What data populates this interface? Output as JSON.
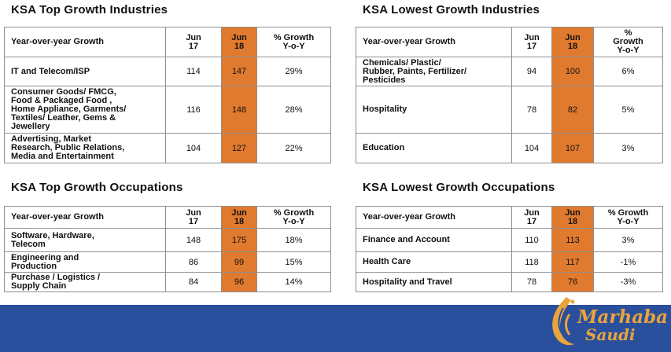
{
  "top_industries": {
    "title": "KSA Top Growth Industries",
    "head": [
      "Year-over-year Growth",
      "Jun\n17",
      "Jun\n18",
      "% Growth\nY-o-Y"
    ],
    "rows": [
      [
        "IT and Telecom/ISP",
        "114",
        "147",
        "29%"
      ],
      [
        "Consumer Goods/ FMCG,\nFood & Packaged Food ,\nHome Appliance, Garments/\nTextiles/ Leather, Gems &\nJewellery",
        "116",
        "148",
        "28%"
      ],
      [
        "Advertising, Market\nResearch, Public Relations,\nMedia and Entertainment",
        "104",
        "127",
        "22%"
      ]
    ]
  },
  "lowest_industries": {
    "title": "KSA Lowest Growth Industries",
    "head": [
      "Year-over-year Growth",
      "Jun\n17",
      "Jun\n18",
      "%\nGrowth\nY-o-Y"
    ],
    "rows": [
      [
        "Chemicals/ Plastic/\nRubber, Paints, Fertilizer/\nPesticides",
        "94",
        "100",
        "6%"
      ],
      [
        "Hospitality",
        "78",
        "82",
        "5%"
      ],
      [
        "Education",
        "104",
        "107",
        "3%"
      ]
    ]
  },
  "top_occupations": {
    "title": "KSA Top Growth Occupations",
    "head": [
      "Year-over-year Growth",
      "Jun\n17",
      "Jun\n18",
      "% Growth\nY-o-Y"
    ],
    "rows": [
      [
        "Software, Hardware,\nTelecom",
        "148",
        "175",
        "18%"
      ],
      [
        "Engineering and\nProduction",
        "86",
        "99",
        "15%"
      ],
      [
        "Purchase / Logistics /\nSupply Chain",
        "84",
        "96",
        "14%"
      ]
    ]
  },
  "lowest_occupations": {
    "title": "KSA Lowest Growth Occupations",
    "head": [
      "Year-over-year Growth",
      "Jun\n17",
      "Jun\n18",
      "% Growth\nY-o-Y"
    ],
    "rows": [
      [
        "Finance and Account",
        "110",
        "113",
        "3%"
      ],
      [
        "Health Care",
        "118",
        "117",
        "-1%"
      ],
      [
        "Hospitality and Travel",
        "78",
        "76",
        "-3%"
      ]
    ]
  },
  "logo": {
    "line1": "Marhaba",
    "line2": "Saudi"
  },
  "colors": {
    "highlight": "#e07a2f",
    "footer": "#2a4f9d",
    "logo": "#e9a43c"
  }
}
